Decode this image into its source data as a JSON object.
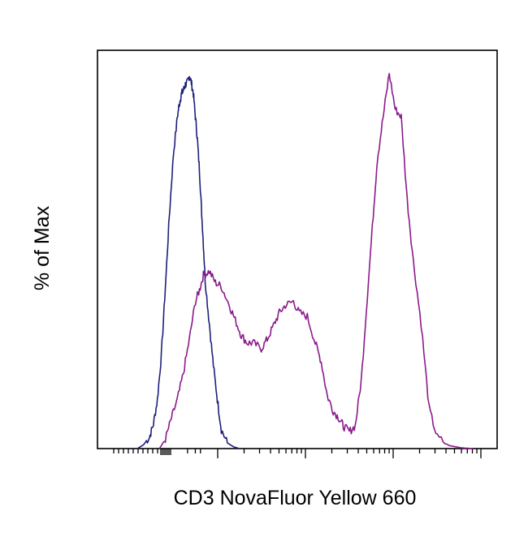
{
  "chart_data": {
    "type": "line",
    "xlabel": "CD3 NovaFluor Yellow 660",
    "ylabel": "% of Max",
    "x_scale": "log (biexponential), unlabeled",
    "xlim": [
      0,
      1
    ],
    "ylim": [
      0,
      100
    ],
    "grid": false,
    "legend": "none",
    "series": [
      {
        "color": "#1f1f7a",
        "x": [
          0.1,
          0.115,
          0.13,
          0.14,
          0.15,
          0.16,
          0.17,
          0.18,
          0.19,
          0.2,
          0.205,
          0.21,
          0.215,
          0.22,
          0.225,
          0.23,
          0.235,
          0.24,
          0.245,
          0.25,
          0.255,
          0.26,
          0.265,
          0.27,
          0.28,
          0.29,
          0.3,
          0.31,
          0.325,
          0.34,
          0.355
        ],
        "y": [
          0.0,
          1.0,
          3.0,
          6.5,
          13.0,
          25.0,
          43.0,
          62.0,
          78.0,
          88.0,
          91.5,
          94.0,
          95.0,
          96.5,
          97.0,
          99.0,
          97.0,
          94.0,
          88.0,
          82.0,
          74.0,
          64.0,
          54.0,
          44.0,
          33.0,
          22.0,
          13.0,
          5.0,
          1.5,
          0.5,
          0.0
        ]
      },
      {
        "color": "#8b1a8b",
        "x": [
          0.155,
          0.17,
          0.185,
          0.2,
          0.215,
          0.23,
          0.245,
          0.255,
          0.265,
          0.28,
          0.295,
          0.31,
          0.33,
          0.345,
          0.36,
          0.375,
          0.39,
          0.41,
          0.425,
          0.44,
          0.455,
          0.47,
          0.49,
          0.505,
          0.525,
          0.545,
          0.56,
          0.575,
          0.59,
          0.605,
          0.615,
          0.63,
          0.645,
          0.66,
          0.675,
          0.69,
          0.7,
          0.715,
          0.73,
          0.745,
          0.76,
          0.775,
          0.79,
          0.81,
          0.83,
          0.85,
          0.88,
          0.91,
          0.94
        ],
        "y": [
          0.0,
          2.5,
          8.0,
          13.0,
          20.0,
          29.0,
          39.0,
          42.0,
          46.0,
          47.0,
          44.0,
          43.0,
          38.0,
          34.0,
          30.0,
          28.0,
          28.0,
          26.5,
          29.0,
          32.5,
          36.0,
          38.0,
          39.0,
          36.0,
          35.0,
          28.0,
          23.0,
          14.0,
          10.0,
          8.0,
          6.0,
          4.5,
          6.0,
          18.0,
          40.0,
          62.0,
          76.5,
          88.0,
          99.5,
          90.0,
          88.0,
          66.0,
          50.0,
          33.0,
          10.5,
          3.0,
          0.8,
          0.2,
          0.0
        ]
      }
    ]
  }
}
